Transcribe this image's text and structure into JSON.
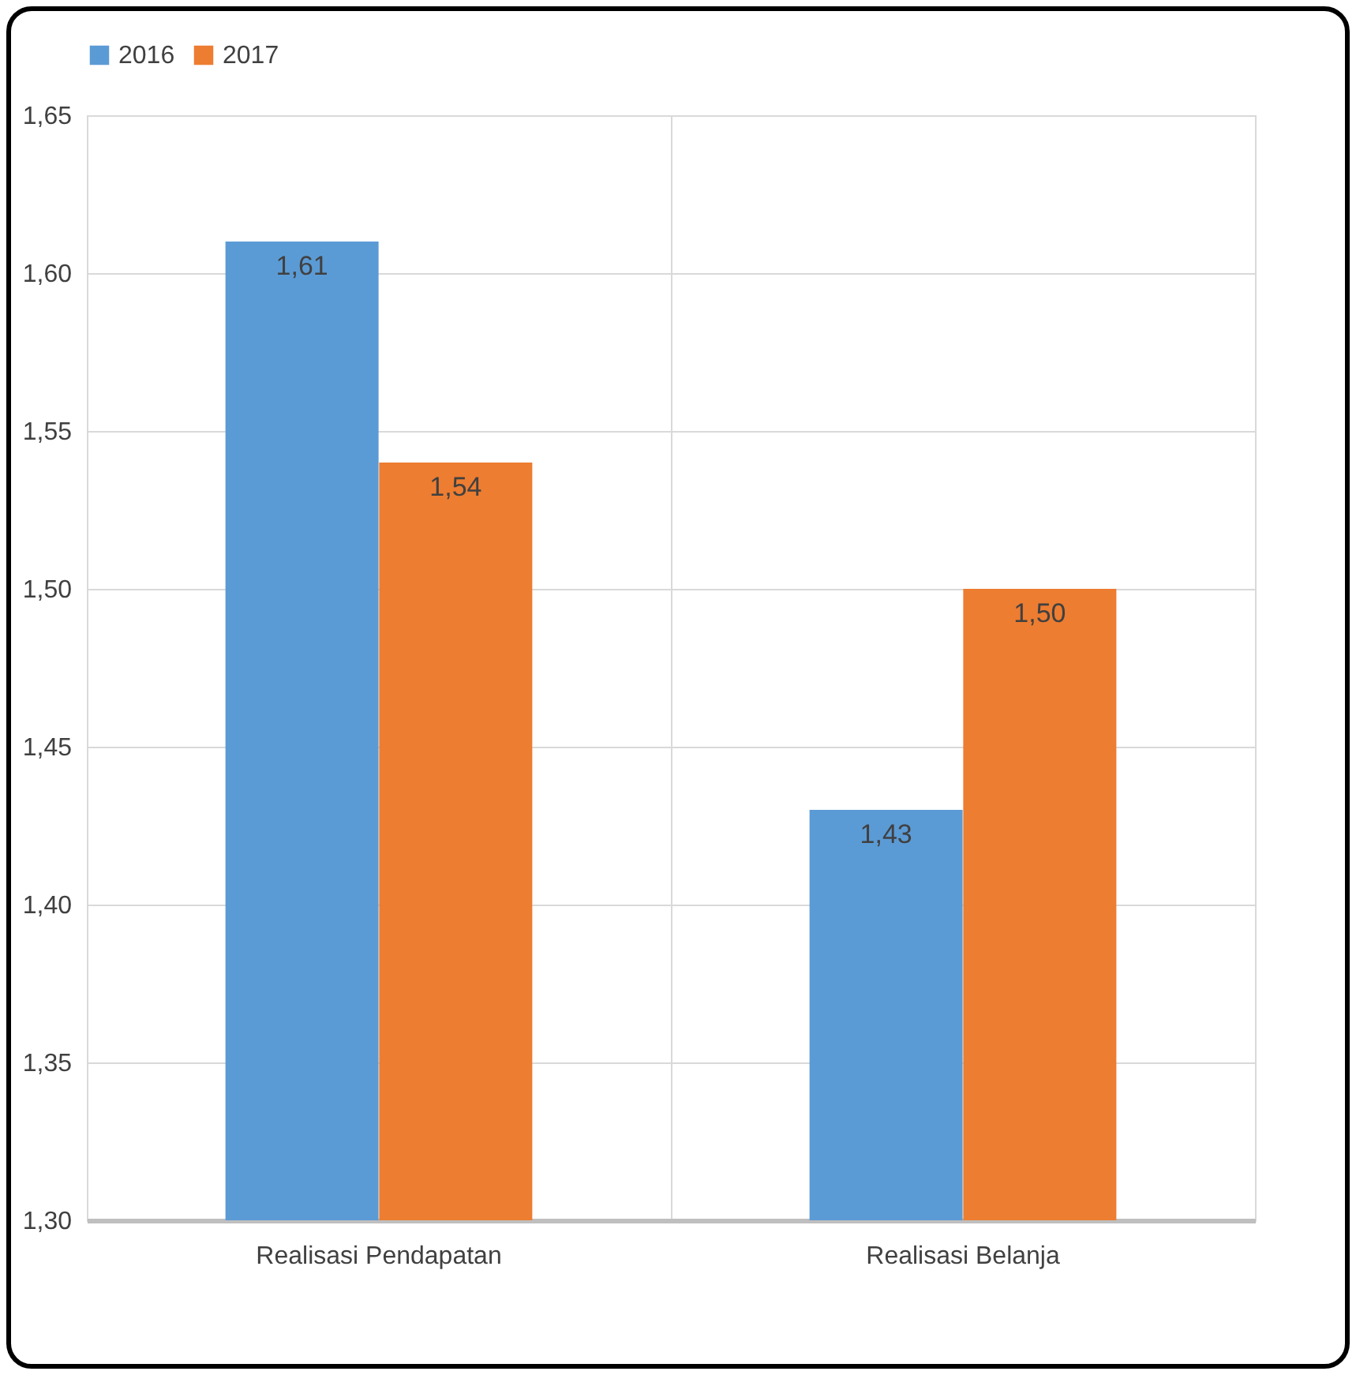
{
  "chart_data": {
    "type": "bar",
    "categories": [
      "Realisasi Pendapatan",
      "Realisasi Belanja"
    ],
    "series": [
      {
        "name": "2016",
        "color": "#5b9bd5",
        "values": [
          1.61,
          1.43
        ],
        "value_labels": [
          "1,61",
          "1,43"
        ]
      },
      {
        "name": "2017",
        "color": "#ed7d31",
        "values": [
          1.54,
          1.5
        ],
        "value_labels": [
          "1,54",
          "1,50"
        ]
      }
    ],
    "ylim": [
      1.3,
      1.65
    ],
    "yticks": [
      {
        "value": 1.3,
        "label": "1,30"
      },
      {
        "value": 1.35,
        "label": "1,35"
      },
      {
        "value": 1.4,
        "label": "1,40"
      },
      {
        "value": 1.45,
        "label": "1,45"
      },
      {
        "value": 1.5,
        "label": "1,50"
      },
      {
        "value": 1.55,
        "label": "1,55"
      },
      {
        "value": 1.6,
        "label": "1,60"
      },
      {
        "value": 1.65,
        "label": "1,65"
      }
    ],
    "grid": true,
    "legend": "top"
  }
}
